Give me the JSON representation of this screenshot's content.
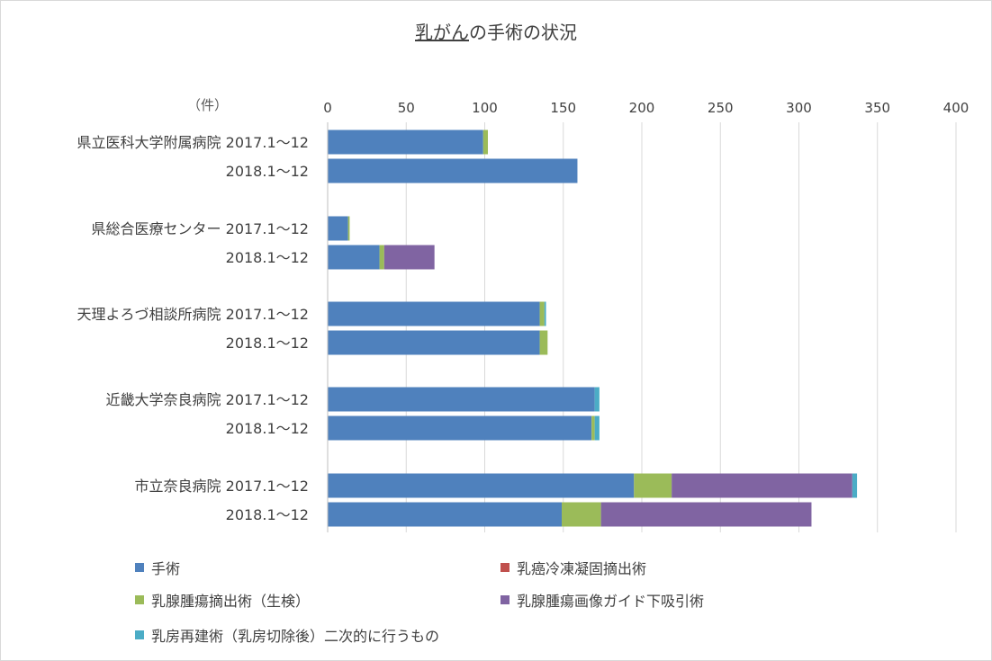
{
  "chart_data": {
    "type": "bar",
    "orientation": "horizontal",
    "stacked": true,
    "title_parts": [
      "乳がん",
      "の手術の状況"
    ],
    "unit_label": "（件）",
    "xlim": [
      0,
      400
    ],
    "x_ticks": [
      0,
      50,
      100,
      150,
      200,
      250,
      300,
      350,
      400
    ],
    "grid": true,
    "legend_position": "bottom",
    "groups": [
      {
        "name": "県立医科大学附属病院",
        "rows": [
          "2017.1～12",
          "2018.1～12"
        ]
      },
      {
        "name": "県総合医療センター",
        "rows": [
          "2017.1～12",
          "2018.1～12"
        ]
      },
      {
        "name": "天理よろづ相談所病院",
        "rows": [
          "2017.1～12",
          "2018.1～12"
        ]
      },
      {
        "name": "近畿大学奈良病院",
        "rows": [
          "2017.1～12",
          "2018.1～12"
        ]
      },
      {
        "name": "市立奈良病院",
        "rows": [
          "2017.1～12",
          "2018.1～12"
        ]
      }
    ],
    "series": [
      {
        "name": "手術",
        "color": "#4F81BD",
        "values": [
          99,
          159,
          13,
          33,
          135,
          135,
          170,
          168,
          195,
          149
        ]
      },
      {
        "name": "乳癌冷凍凝固摘出術",
        "color": "#C0504D",
        "values": [
          0,
          0,
          0,
          0,
          0,
          0,
          0,
          0,
          0,
          0
        ]
      },
      {
        "name": "乳腺腫瘍摘出術（生検）",
        "color": "#9BBB59",
        "values": [
          3,
          0,
          1,
          3,
          3,
          5,
          0,
          2,
          24,
          25
        ]
      },
      {
        "name": "乳腺腫瘍画像ガイド下吸引術",
        "color": "#8064A2",
        "values": [
          0,
          0,
          0,
          32,
          0,
          0,
          0,
          0,
          115,
          134
        ]
      },
      {
        "name": "乳房再建術（乳房切除後）二次的に行うもの",
        "color": "#4BACC6",
        "values": [
          0,
          0,
          0,
          0,
          1,
          0,
          3,
          3,
          3,
          0
        ]
      }
    ]
  }
}
